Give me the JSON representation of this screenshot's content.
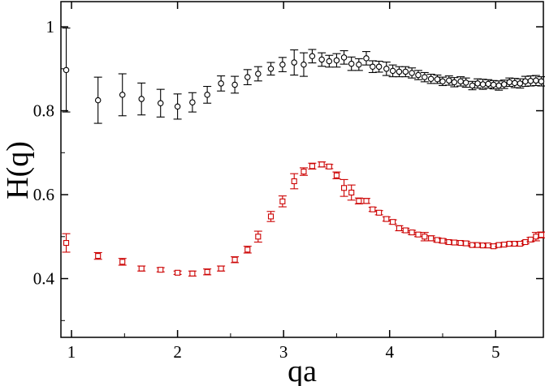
{
  "chart_data": {
    "type": "scatter",
    "title": "",
    "xlabel": "qa",
    "ylabel": "H(q)",
    "xlim": [
      0.9,
      5.45
    ],
    "ylim": [
      0.26,
      1.06
    ],
    "grid": false,
    "legend": "none",
    "x_ticks": [
      1,
      2,
      3,
      4,
      5
    ],
    "y_ticks": [
      0.4,
      0.6,
      0.8,
      1
    ],
    "x_tick_labels": [
      "1",
      "2",
      "3",
      "4",
      "5"
    ],
    "y_tick_labels": [
      "0.4",
      "0.6",
      "0.8",
      "1"
    ],
    "series": [
      {
        "name": "circles",
        "marker": "circle",
        "color": "#000000",
        "points": [
          [
            0.95,
            0.897,
            0.1
          ],
          [
            1.25,
            0.825,
            0.055
          ],
          [
            1.48,
            0.838,
            0.05
          ],
          [
            1.66,
            0.828,
            0.038
          ],
          [
            1.84,
            0.818,
            0.033
          ],
          [
            2.0,
            0.81,
            0.03
          ],
          [
            2.14,
            0.82,
            0.023
          ],
          [
            2.28,
            0.838,
            0.02
          ],
          [
            2.41,
            0.865,
            0.018
          ],
          [
            2.54,
            0.862,
            0.02
          ],
          [
            2.66,
            0.88,
            0.018
          ],
          [
            2.76,
            0.888,
            0.017
          ],
          [
            2.88,
            0.9,
            0.015
          ],
          [
            2.99,
            0.91,
            0.017
          ],
          [
            3.1,
            0.915,
            0.03
          ],
          [
            3.19,
            0.91,
            0.028
          ],
          [
            3.27,
            0.93,
            0.016
          ],
          [
            3.36,
            0.922,
            0.016
          ],
          [
            3.43,
            0.918,
            0.014
          ],
          [
            3.5,
            0.92,
            0.016
          ],
          [
            3.57,
            0.927,
            0.016
          ],
          [
            3.64,
            0.912,
            0.016
          ],
          [
            3.71,
            0.91,
            0.014
          ],
          [
            3.78,
            0.925,
            0.016
          ],
          [
            3.84,
            0.905,
            0.014
          ],
          [
            3.9,
            0.905,
            0.013
          ],
          [
            3.97,
            0.9,
            0.016
          ],
          [
            4.03,
            0.895,
            0.014
          ],
          [
            4.09,
            0.893,
            0.012
          ],
          [
            4.15,
            0.893,
            0.012
          ],
          [
            4.21,
            0.89,
            0.012
          ],
          [
            4.27,
            0.885,
            0.011
          ],
          [
            4.33,
            0.88,
            0.011
          ],
          [
            4.39,
            0.876,
            0.011
          ],
          [
            4.45,
            0.875,
            0.01
          ],
          [
            4.5,
            0.87,
            0.01
          ],
          [
            4.56,
            0.872,
            0.011
          ],
          [
            4.61,
            0.868,
            0.011
          ],
          [
            4.67,
            0.87,
            0.011
          ],
          [
            4.72,
            0.867,
            0.011
          ],
          [
            4.78,
            0.86,
            0.01
          ],
          [
            4.83,
            0.865,
            0.011
          ],
          [
            4.88,
            0.863,
            0.012
          ],
          [
            4.93,
            0.864,
            0.01
          ],
          [
            4.98,
            0.862,
            0.01
          ],
          [
            5.03,
            0.86,
            0.011
          ],
          [
            5.08,
            0.863,
            0.01
          ],
          [
            5.13,
            0.868,
            0.01
          ],
          [
            5.18,
            0.866,
            0.011
          ],
          [
            5.23,
            0.865,
            0.011
          ],
          [
            5.28,
            0.87,
            0.012
          ],
          [
            5.33,
            0.871,
            0.012
          ],
          [
            5.38,
            0.872,
            0.012
          ],
          [
            5.43,
            0.87,
            0.011
          ]
        ]
      },
      {
        "name": "squares",
        "marker": "square",
        "color": "#cc0000",
        "points": [
          [
            0.95,
            0.485,
            0.022
          ],
          [
            1.25,
            0.454,
            0.008
          ],
          [
            1.48,
            0.44,
            0.008
          ],
          [
            1.66,
            0.424,
            0.006
          ],
          [
            1.84,
            0.421,
            0.005
          ],
          [
            2.0,
            0.414,
            0.004
          ],
          [
            2.14,
            0.412,
            0.006
          ],
          [
            2.28,
            0.416,
            0.007
          ],
          [
            2.41,
            0.424,
            0.006
          ],
          [
            2.54,
            0.445,
            0.007
          ],
          [
            2.66,
            0.469,
            0.008
          ],
          [
            2.76,
            0.5,
            0.013
          ],
          [
            2.88,
            0.548,
            0.012
          ],
          [
            2.99,
            0.584,
            0.013
          ],
          [
            3.1,
            0.632,
            0.018
          ],
          [
            3.19,
            0.655,
            0.009
          ],
          [
            3.27,
            0.668,
            0.007
          ],
          [
            3.36,
            0.672,
            0.006
          ],
          [
            3.43,
            0.667,
            0.005
          ],
          [
            3.5,
            0.646,
            0.008
          ],
          [
            3.57,
            0.616,
            0.02
          ],
          [
            3.64,
            0.605,
            0.018
          ],
          [
            3.71,
            0.585,
            0.007
          ],
          [
            3.78,
            0.585,
            0.006
          ],
          [
            3.84,
            0.565,
            0.005
          ],
          [
            3.9,
            0.557,
            0.005
          ],
          [
            3.97,
            0.542,
            0.005
          ],
          [
            4.03,
            0.535,
            0.005
          ],
          [
            4.09,
            0.52,
            0.006
          ],
          [
            4.15,
            0.515,
            0.005
          ],
          [
            4.21,
            0.51,
            0.005
          ],
          [
            4.27,
            0.505,
            0.005
          ],
          [
            4.33,
            0.5,
            0.01
          ],
          [
            4.39,
            0.496,
            0.006
          ],
          [
            4.45,
            0.492,
            0.005
          ],
          [
            4.5,
            0.49,
            0.005
          ],
          [
            4.56,
            0.487,
            0.005
          ],
          [
            4.61,
            0.486,
            0.005
          ],
          [
            4.67,
            0.485,
            0.005
          ],
          [
            4.72,
            0.484,
            0.005
          ],
          [
            4.78,
            0.48,
            0.004
          ],
          [
            4.83,
            0.48,
            0.004
          ],
          [
            4.88,
            0.479,
            0.004
          ],
          [
            4.93,
            0.479,
            0.004
          ],
          [
            4.98,
            0.477,
            0.004
          ],
          [
            5.03,
            0.48,
            0.004
          ],
          [
            5.08,
            0.481,
            0.004
          ],
          [
            5.13,
            0.483,
            0.004
          ],
          [
            5.18,
            0.483,
            0.004
          ],
          [
            5.23,
            0.483,
            0.004
          ],
          [
            5.28,
            0.487,
            0.004
          ],
          [
            5.33,
            0.493,
            0.005
          ],
          [
            5.38,
            0.5,
            0.01
          ],
          [
            5.43,
            0.504,
            0.007
          ]
        ]
      }
    ]
  }
}
